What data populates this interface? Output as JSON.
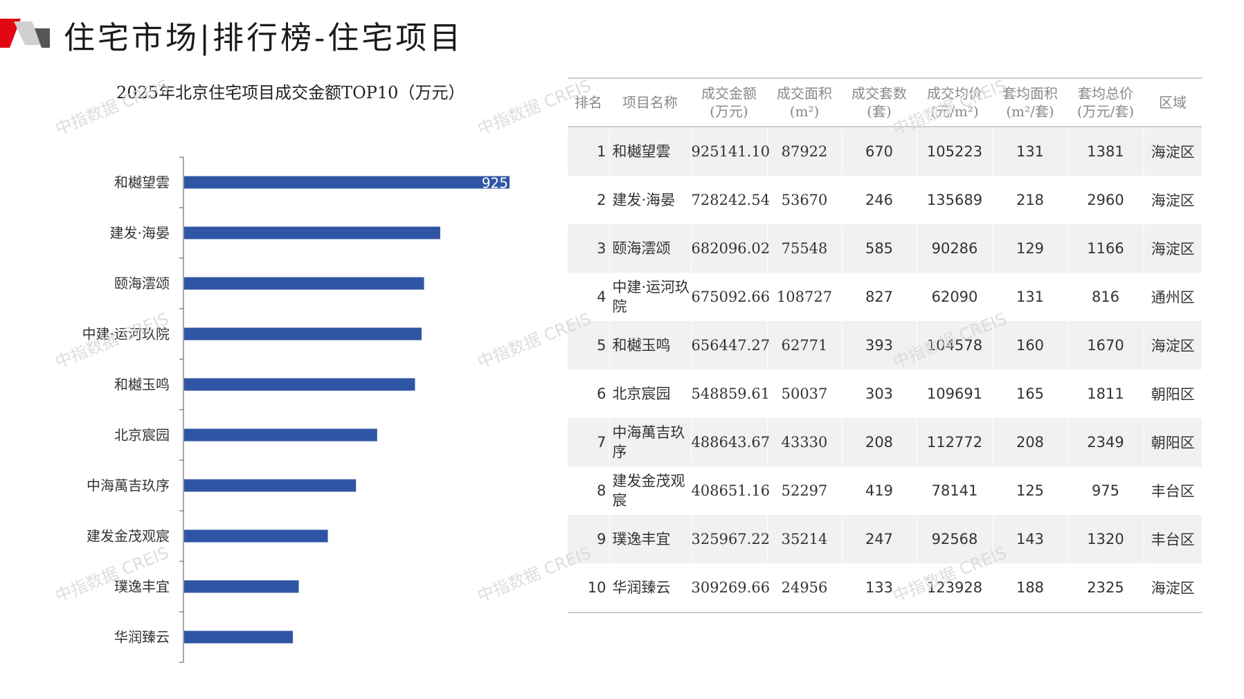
{
  "header": {
    "title": "住宅市场|排行榜-住宅项目",
    "accent_color": "#e30613"
  },
  "chart_title": "2025年北京住宅项目成交金额TOP10（万元）",
  "chart_data": {
    "type": "bar",
    "orientation": "horizontal",
    "title": "2025年北京住宅项目成交金额TOP10（万元）",
    "categories": [
      "和樾望雲",
      "建发·海晏",
      "颐海澐颂",
      "中建·运河玖院",
      "和樾玉鸣",
      "北京宸园",
      "中海萬吉玖序",
      "建发金茂观宸",
      "璞逸丰宜",
      "华润臻云"
    ],
    "values": [
      925141.1,
      728242.54,
      682096.02,
      675092.66,
      656447.27,
      548859.61,
      488643.67,
      408651.16,
      325967.22,
      309269.66
    ],
    "data_labels": [
      "925",
      "",
      "",
      "",
      "",
      "",
      "",
      "",
      "",
      ""
    ],
    "bar_color": "#2f55a4",
    "grid": false,
    "legend": "none"
  },
  "table": {
    "headers": [
      {
        "l1": "排名",
        "l2": ""
      },
      {
        "l1": "项目名称",
        "l2": ""
      },
      {
        "l1": "成交金额",
        "l2": "(万元)"
      },
      {
        "l1": "成交面积",
        "l2": "(m²)"
      },
      {
        "l1": "成交套数",
        "l2": "(套)"
      },
      {
        "l1": "成交均价",
        "l2": "(元/m²)"
      },
      {
        "l1": "套均面积",
        "l2": "(m²/套)"
      },
      {
        "l1": "套均总价",
        "l2": "(万元/套)"
      },
      {
        "l1": "区域",
        "l2": ""
      }
    ],
    "rows": [
      {
        "rank": "1",
        "name": "和樾望雲",
        "amount": "925141.10",
        "area": "87922",
        "units": "670",
        "avg_price": "105223",
        "avg_area": "131",
        "avg_total": "1381",
        "district": "海淀区"
      },
      {
        "rank": "2",
        "name": "建发·海晏",
        "amount": "728242.54",
        "area": "53670",
        "units": "246",
        "avg_price": "135689",
        "avg_area": "218",
        "avg_total": "2960",
        "district": "海淀区"
      },
      {
        "rank": "3",
        "name": "颐海澐颂",
        "amount": "682096.02",
        "area": "75548",
        "units": "585",
        "avg_price": "90286",
        "avg_area": "129",
        "avg_total": "1166",
        "district": "海淀区"
      },
      {
        "rank": "4",
        "name": "中建·运河玖院",
        "amount": "675092.66",
        "area": "108727",
        "units": "827",
        "avg_price": "62090",
        "avg_area": "131",
        "avg_total": "816",
        "district": "通州区"
      },
      {
        "rank": "5",
        "name": "和樾玉鸣",
        "amount": "656447.27",
        "area": "62771",
        "units": "393",
        "avg_price": "104578",
        "avg_area": "160",
        "avg_total": "1670",
        "district": "海淀区"
      },
      {
        "rank": "6",
        "name": "北京宸园",
        "amount": "548859.61",
        "area": "50037",
        "units": "303",
        "avg_price": "109691",
        "avg_area": "165",
        "avg_total": "1811",
        "district": "朝阳区"
      },
      {
        "rank": "7",
        "name": "中海萬吉玖序",
        "amount": "488643.67",
        "area": "43330",
        "units": "208",
        "avg_price": "112772",
        "avg_area": "208",
        "avg_total": "2349",
        "district": "朝阳区"
      },
      {
        "rank": "8",
        "name": "建发金茂观宸",
        "amount": "408651.16",
        "area": "52297",
        "units": "419",
        "avg_price": "78141",
        "avg_area": "125",
        "avg_total": "975",
        "district": "丰台区"
      },
      {
        "rank": "9",
        "name": "璞逸丰宜",
        "amount": "325967.22",
        "area": "35214",
        "units": "247",
        "avg_price": "92568",
        "avg_area": "143",
        "avg_total": "1320",
        "district": "丰台区"
      },
      {
        "rank": "10",
        "name": "华润臻云",
        "amount": "309269.66",
        "area": "24956",
        "units": "133",
        "avg_price": "123928",
        "avg_area": "188",
        "avg_total": "2325",
        "district": "海淀区"
      }
    ]
  },
  "watermark": "中指数据 CREIS"
}
